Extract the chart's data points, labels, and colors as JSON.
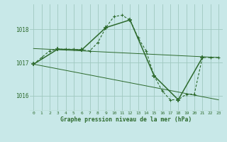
{
  "title": "Graphe pression niveau de la mer (hPa)",
  "background_color": "#c8e8e8",
  "grid_color": "#a0c8c0",
  "line_color": "#2d6a2d",
  "xlim": [
    -0.5,
    23.5
  ],
  "ylim": [
    1015.55,
    1018.75
  ],
  "yticks": [
    1016,
    1017,
    1018
  ],
  "hourly_x": [
    0,
    1,
    2,
    3,
    4,
    5,
    6,
    7,
    8,
    9,
    10,
    11,
    12,
    13,
    14,
    15,
    16,
    17,
    18,
    19,
    20,
    21,
    22,
    23
  ],
  "hourly_y": [
    1016.95,
    1017.15,
    1017.35,
    1017.4,
    1017.4,
    1017.4,
    1017.38,
    1017.35,
    1017.6,
    1018.05,
    1018.38,
    1018.42,
    1018.28,
    1017.75,
    1017.35,
    1016.6,
    1016.15,
    1015.88,
    1015.88,
    1016.05,
    1016.05,
    1017.15,
    1017.15,
    1017.15
  ],
  "synop_x": [
    0,
    3,
    6,
    9,
    12,
    15,
    18,
    21
  ],
  "synop_y": [
    1016.95,
    1017.4,
    1017.38,
    1018.05,
    1018.28,
    1016.6,
    1015.88,
    1017.15
  ],
  "trend1_x": [
    0,
    23
  ],
  "trend1_y": [
    1017.42,
    1017.15
  ],
  "trend2_x": [
    0,
    23
  ],
  "trend2_y": [
    1016.95,
    1015.88
  ]
}
